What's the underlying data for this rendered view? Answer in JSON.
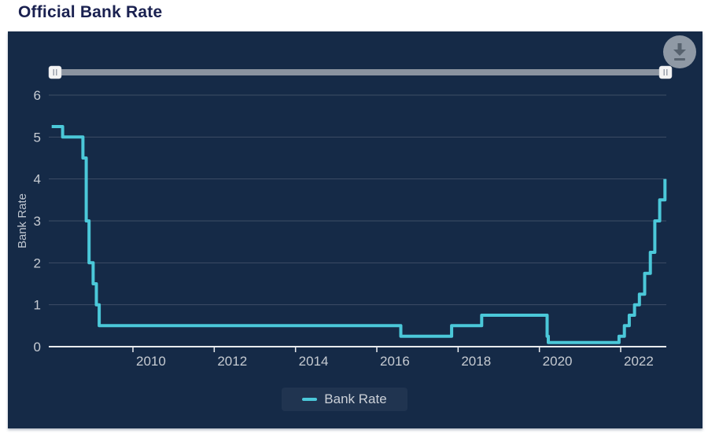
{
  "page_title": "Official Bank Rate",
  "colors": {
    "series": "#4BC8D9",
    "panel_background": "#152A47",
    "title_text": "#1A2150",
    "axis_text": "#C6CBD2",
    "gridline": "#3D4D66",
    "axis_line": "#E9EBEE",
    "slider_track": "#8A93A0",
    "download_button": "#8F99A5"
  },
  "icons": {
    "download": "download-arrow-with-bar",
    "slider_handle_grip": "||"
  },
  "chart_data": {
    "type": "line",
    "step": "after",
    "title": "",
    "xlabel": "",
    "ylabel": "Bank Rate",
    "grid": "horizontal-only",
    "x_axis": {
      "ticks": [
        2010,
        2012,
        2014,
        2016,
        2018,
        2020,
        2022
      ],
      "range_years": [
        2008.0,
        2023.1
      ],
      "unit": "year"
    },
    "y_axis": {
      "ticks": [
        0,
        1,
        2,
        3,
        4,
        5,
        6
      ],
      "range": [
        0,
        6.4
      ]
    },
    "series": [
      {
        "name": "Bank Rate",
        "color": "#4BC8D9",
        "points_year_value": [
          [
            2008.0,
            5.25
          ],
          [
            2008.27,
            5.0
          ],
          [
            2008.77,
            4.5
          ],
          [
            2008.85,
            3.0
          ],
          [
            2008.92,
            2.0
          ],
          [
            2009.02,
            1.5
          ],
          [
            2009.1,
            1.0
          ],
          [
            2009.17,
            0.5
          ],
          [
            2016.59,
            0.25
          ],
          [
            2017.84,
            0.5
          ],
          [
            2018.58,
            0.75
          ],
          [
            2020.19,
            0.25
          ],
          [
            2020.22,
            0.1
          ],
          [
            2021.96,
            0.25
          ],
          [
            2022.09,
            0.5
          ],
          [
            2022.21,
            0.75
          ],
          [
            2022.34,
            1.0
          ],
          [
            2022.46,
            1.25
          ],
          [
            2022.59,
            1.75
          ],
          [
            2022.73,
            2.25
          ],
          [
            2022.84,
            3.0
          ],
          [
            2022.96,
            3.5
          ],
          [
            2023.09,
            4.0
          ]
        ]
      }
    ],
    "legend": {
      "position": "bottom-center",
      "items": [
        {
          "label": "Bank Rate",
          "color": "#4BC8D9"
        }
      ]
    }
  }
}
